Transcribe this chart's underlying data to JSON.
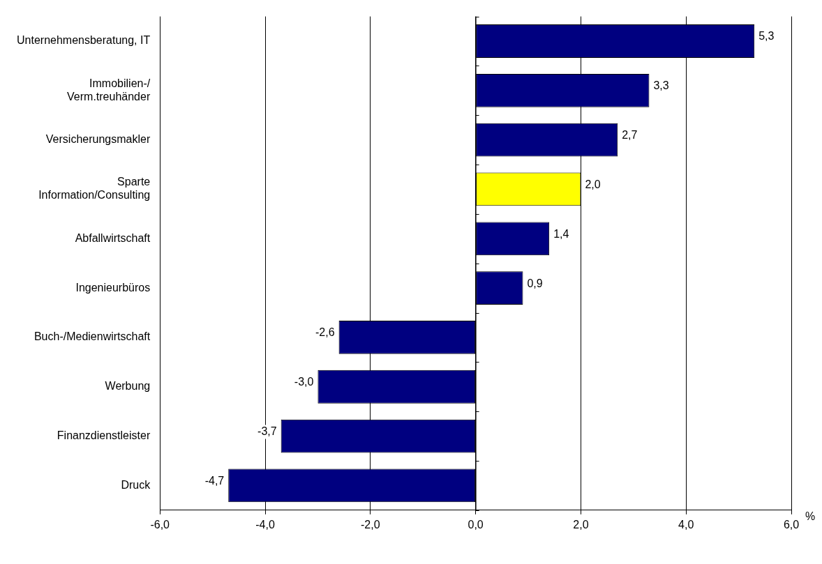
{
  "chart_data": {
    "type": "bar",
    "orientation": "horizontal",
    "xlabel": "%",
    "categories": [
      "Unternehmensberatung, IT",
      "Immobilien-/\nVerm.treuhänder",
      "Versicherungsmakler",
      "Sparte\nInformation/Consulting",
      "Abfallwirtschaft",
      "Ingenieurbüros",
      "Buch-/Medienwirtschaft",
      "Werbung",
      "Finanzdienstleister",
      "Druck"
    ],
    "values": [
      5.3,
      3.3,
      2.7,
      2.0,
      1.4,
      0.9,
      -2.6,
      -3.0,
      -3.7,
      -4.7
    ],
    "colors": [
      "#000080",
      "#000080",
      "#000080",
      "#ffff00",
      "#000080",
      "#000080",
      "#000080",
      "#000080",
      "#000080",
      "#000080"
    ],
    "value_labels": [
      "5,3",
      "3,3",
      "2,7",
      "2,0",
      "1,4",
      "0,9",
      "-2,6",
      "-3,0",
      "-3,7",
      "-4,7"
    ],
    "xlim": [
      -6,
      6
    ],
    "xticks": [
      {
        "value": -6,
        "label": "-6,0"
      },
      {
        "value": -4,
        "label": "-4,0"
      },
      {
        "value": -2,
        "label": "-2,0"
      },
      {
        "value": 0,
        "label": "0,0"
      },
      {
        "value": 2,
        "label": "2,0"
      },
      {
        "value": 4,
        "label": "4,0"
      },
      {
        "value": 6,
        "label": "6,0"
      }
    ],
    "grid": "x",
    "legend": false
  }
}
